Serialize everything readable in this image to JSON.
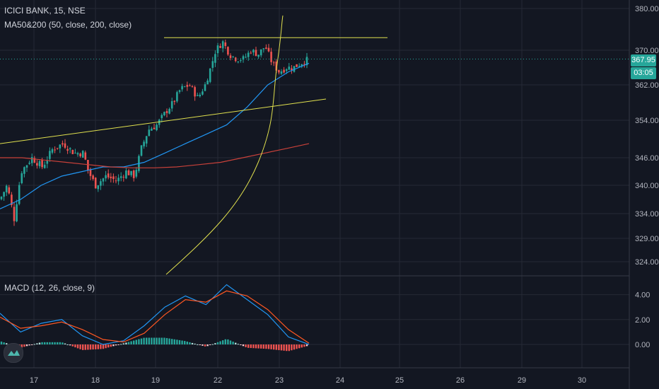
{
  "header": {
    "symbol_line": "ICICI BANK, 15, NSE",
    "ma_line": "MA50&200 (50, close, 200, close)",
    "macd_line": "MACD (12, 26, close, 9)"
  },
  "price_tag": {
    "price": "367.95",
    "countdown": "03:05"
  },
  "colors": {
    "background": "#131722",
    "up": "#26a69a",
    "down": "#ef5350",
    "ma50": "#2196f3",
    "ma200": "#c9413a",
    "trendline": "#e0e04e",
    "macd": "#2196f3",
    "signal": "#ff5722",
    "grid": "#262a35"
  },
  "icons": {
    "logo": "tradingview-logo-icon"
  },
  "chart_data": [
    {
      "type": "candlestick",
      "title": "ICICI BANK, 15, NSE",
      "y_ticks": [
        "380.00",
        "370.00",
        "362.00",
        "354.00",
        "346.00",
        "340.00",
        "334.00",
        "329.00",
        "324.00"
      ],
      "x_ticks": [
        "17",
        "18",
        "19",
        "22",
        "23",
        "24",
        "25",
        "26",
        "29",
        "30"
      ],
      "current_price": 367.95,
      "grid": true,
      "series": [
        {
          "name": "MA50",
          "values_approx": [
            335,
            337,
            340,
            342,
            343,
            344,
            344,
            345,
            347,
            349,
            351,
            353,
            357,
            362,
            365,
            367
          ]
        },
        {
          "name": "MA200",
          "values_approx": [
            346,
            346,
            345.5,
            345,
            344.5,
            344,
            343.8,
            343.8,
            344,
            344.5,
            345,
            346,
            347,
            348,
            349
          ]
        }
      ],
      "session_closes_approx": [
        {
          "x": "17",
          "close": 343
        },
        {
          "x": "18",
          "close": 341
        },
        {
          "x": "19",
          "close": 352
        },
        {
          "x": "22",
          "close": 370
        },
        {
          "x": "23",
          "close": 368
        }
      ],
      "range": {
        "low": 326,
        "high": 373
      }
    },
    {
      "type": "bar",
      "title": "MACD (12, 26, close, 9)",
      "y_ticks": [
        "4.00",
        "2.00",
        "0.00"
      ],
      "series": [
        {
          "name": "MACD",
          "values_approx": [
            2.5,
            1.0,
            1.7,
            2.0,
            0.7,
            0.0,
            0.3,
            1.5,
            3.0,
            3.9,
            3.2,
            4.8,
            3.6,
            2.4,
            0.6,
            0.0
          ]
        },
        {
          "name": "Signal",
          "values_approx": [
            2.2,
            1.3,
            1.5,
            1.8,
            1.2,
            0.4,
            0.2,
            0.9,
            2.4,
            3.6,
            3.4,
            4.3,
            3.9,
            2.8,
            1.2,
            0.1
          ]
        }
      ]
    }
  ]
}
